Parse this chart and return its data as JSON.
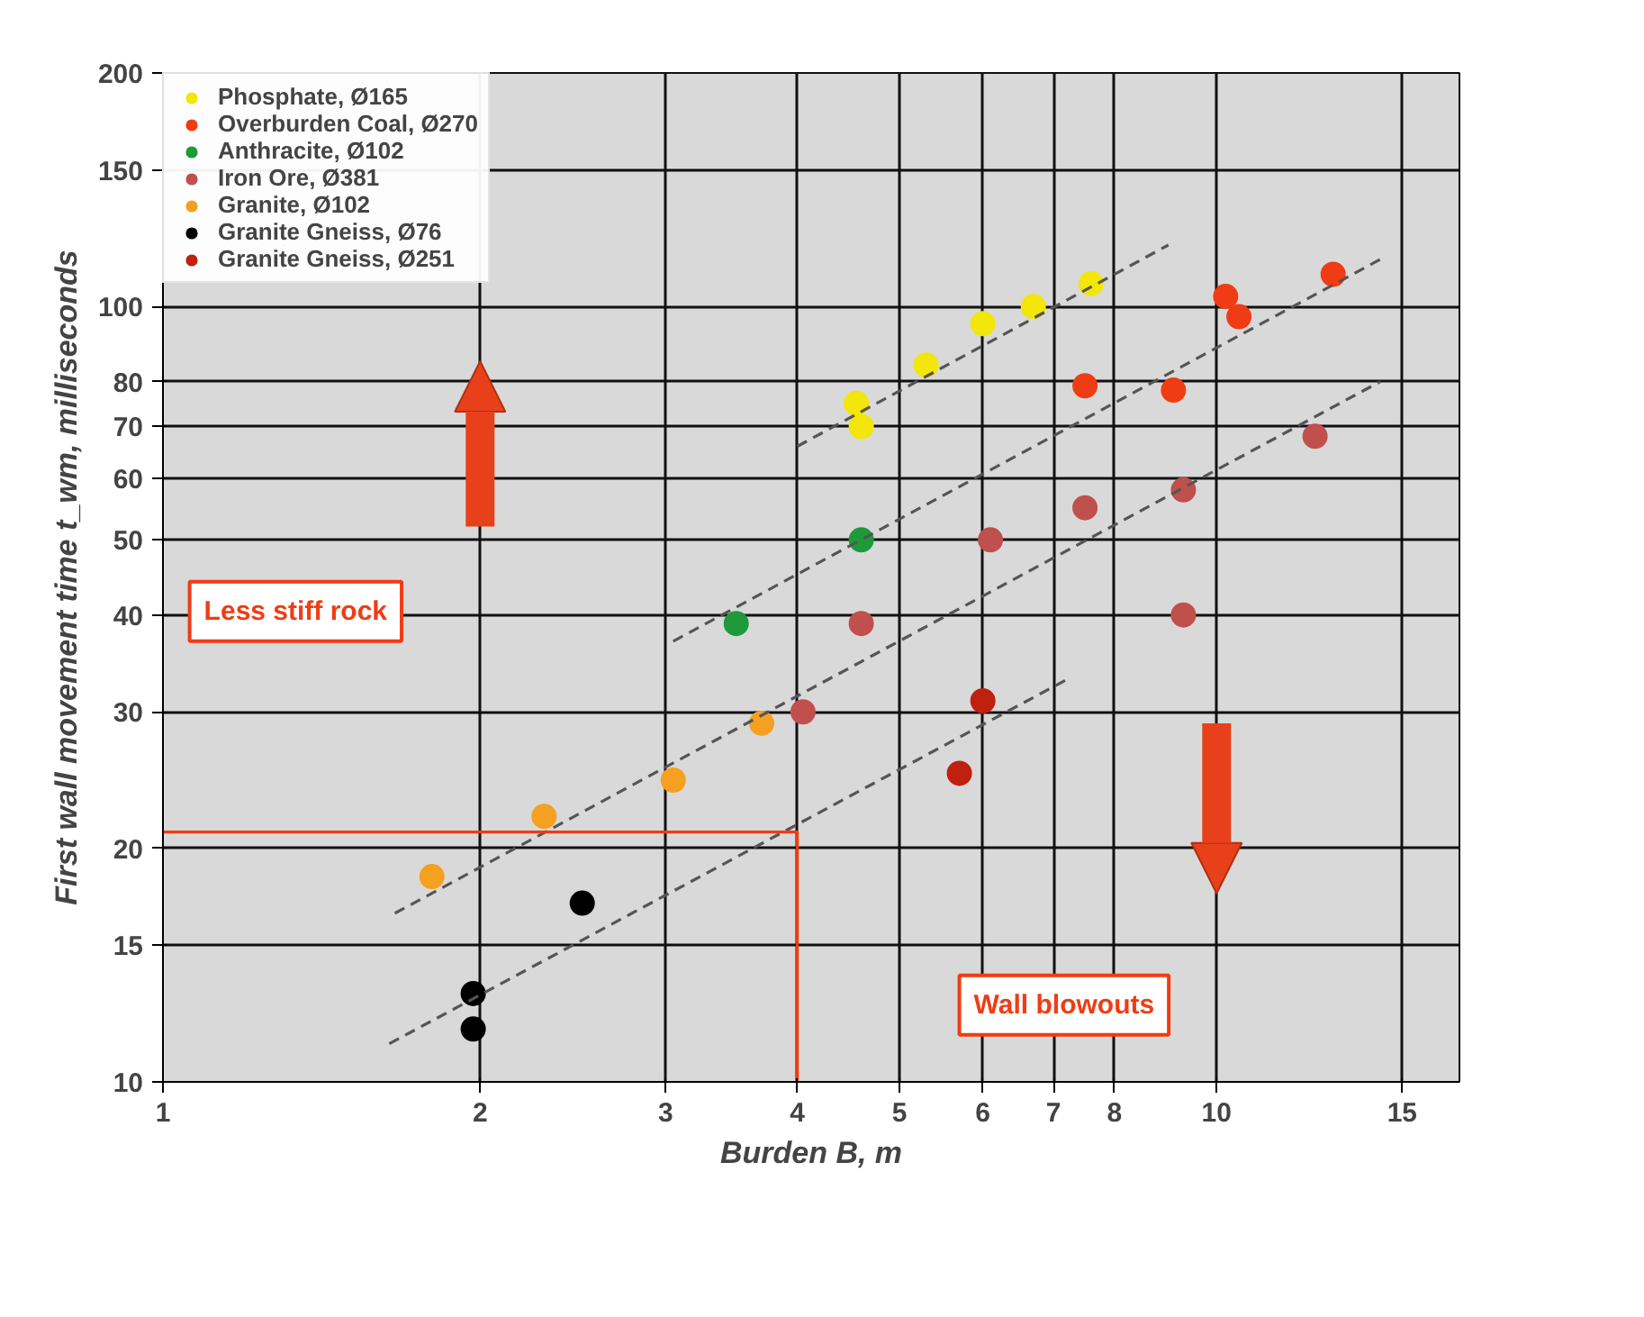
{
  "chart_data": {
    "type": "scatter",
    "xlabel": "Burden B, m",
    "ylabel": "First wall movement time t_wm, milliseconds",
    "annotations": [
      "Less stiff rock",
      "Wall blowouts"
    ],
    "log": "xy",
    "grid": true,
    "legend": "top left",
    "marker": "circle",
    "xlim": [
      1,
      17
    ],
    "ylim": [
      10,
      200
    ],
    "xticks": [
      1,
      2,
      3,
      4,
      5,
      6,
      7,
      8,
      10,
      15
    ],
    "yticks": [
      10,
      15,
      20,
      30,
      40,
      50,
      60,
      70,
      80,
      100,
      150,
      200
    ],
    "series": [
      {
        "name": "Phosphate, Ø165",
        "color": "#f2e60a",
        "x": [
          4.55,
          4.6,
          5.3,
          6.0,
          6.7,
          7.6
        ],
        "values": [
          75,
          70,
          84,
          95,
          100,
          107
        ]
      },
      {
        "name": "Overburden Coal, Ø270",
        "color": "#f03c14",
        "x": [
          10.2,
          10.5,
          12.9,
          7.5,
          9.1
        ],
        "values": [
          103,
          97,
          110,
          79,
          78
        ]
      },
      {
        "name": "Anthracite, Ø102",
        "color": "#1f9a3a",
        "x": [
          3.5,
          4.6
        ],
        "values": [
          39,
          50
        ]
      },
      {
        "name": "Iron Ore, Ø381",
        "color": "#c0504d",
        "x": [
          4.6,
          4.05,
          6.1,
          7.5,
          9.3,
          9.3,
          12.4
        ],
        "values": [
          39,
          30,
          50,
          55,
          58,
          40,
          68
        ]
      },
      {
        "name": "Granite, Ø102",
        "color": "#f5a020",
        "x": [
          1.8,
          2.3,
          3.05,
          3.7
        ],
        "values": [
          18.4,
          22,
          24.5,
          29
        ]
      },
      {
        "name": "Granite Gneiss, Ø76",
        "color": "#000000",
        "x": [
          1.97,
          1.97,
          2.5
        ],
        "values": [
          13,
          11.7,
          17
        ]
      },
      {
        "name": "Granite Gneiss, Ø251",
        "color": "#c02010",
        "x": [
          6.0,
          5.7
        ],
        "values": [
          31,
          25
        ]
      },
      {
        "type": "line",
        "color": "#555555",
        "line_style": "dashed",
        "marker": "none",
        "x": [
          4.0,
          9.0
        ],
        "values": [
          66,
          120
        ]
      },
      {
        "type": "line",
        "color": "#555555",
        "line_style": "dashed",
        "marker": "none",
        "x": [
          3.05,
          14.3
        ],
        "values": [
          37,
          115
        ]
      },
      {
        "type": "line",
        "color": "#555555",
        "line_style": "dashed",
        "marker": "none",
        "x": [
          1.66,
          14.3
        ],
        "values": [
          16.5,
          80
        ]
      },
      {
        "type": "line",
        "color": "#555555",
        "line_style": "dashed",
        "marker": "none",
        "x": [
          1.64,
          7.2
        ],
        "values": [
          11.2,
          33
        ]
      },
      {
        "type": "line",
        "color": "#f03c14",
        "line_style": "solid",
        "marker": "none",
        "x": [
          4,
          4,
          1
        ],
        "values": [
          10,
          21,
          21
        ]
      }
    ]
  }
}
